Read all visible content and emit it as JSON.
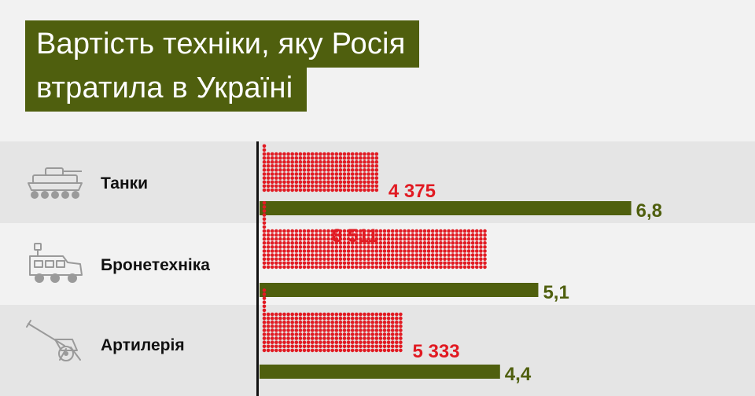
{
  "title_lines": [
    "Вартість техніки, яку Росія",
    "втратила в Україні"
  ],
  "colors": {
    "title_bg": "#4f5f0e",
    "count_dots": "#e11a22",
    "cost_bar": "#4f5f0e",
    "row_alt": "#e5e5e5",
    "row_base": "#f2f2f2"
  },
  "chart_data": {
    "type": "bar",
    "categories": [
      "Танки",
      "Бронетехніка",
      "Артилерія"
    ],
    "icons": [
      "tank-icon",
      "armored-vehicle-icon",
      "artillery-icon"
    ],
    "series": [
      {
        "values": [
          4375,
          8511,
          5333
        ],
        "labels": [
          "4 375",
          "8 511",
          "5 333"
        ],
        "style": "dots",
        "color": "#e11a22"
      },
      {
        "values": [
          6.8,
          5.1,
          4.4
        ],
        "labels": [
          "6,8",
          "5,1",
          "4,4"
        ],
        "style": "bar",
        "color": "#4f5f0e"
      }
    ]
  }
}
